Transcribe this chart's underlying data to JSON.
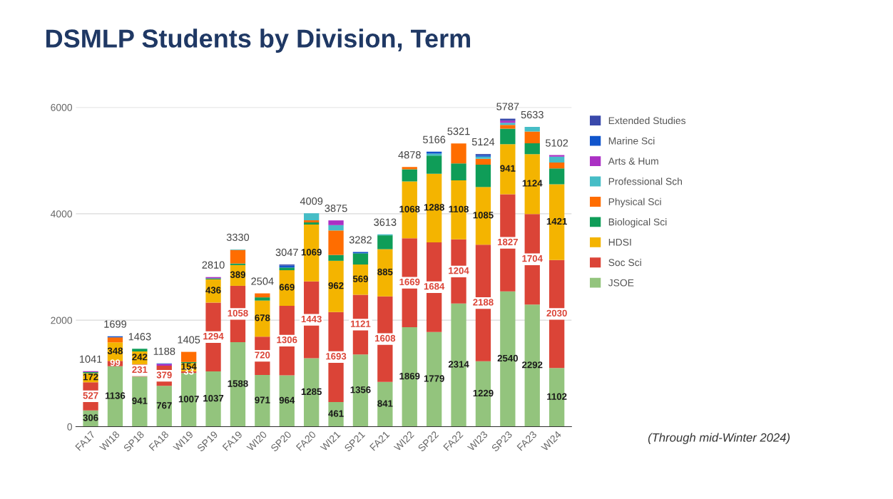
{
  "chart_data": {
    "type": "bar",
    "stacked": true,
    "title": "DSMLP Students by Division, Term",
    "categories": [
      "FA17",
      "WI18",
      "SP18",
      "FA18",
      "WI19",
      "SP19",
      "FA19",
      "WI20",
      "SP20",
      "FA20",
      "WI21",
      "SP21",
      "FA21",
      "WI22",
      "SP22",
      "FA22",
      "WI23",
      "SP23",
      "FA23",
      "WI24"
    ],
    "series": [
      {
        "name": "JSOE",
        "color": "#93c47d",
        "values": [
          306,
          1136,
          941,
          767,
          1007,
          1037,
          1588,
          971,
          964,
          1285,
          461,
          1356,
          841,
          1869,
          1779,
          2314,
          1229,
          2540,
          2292,
          1102
        ],
        "value_labels": [
          "306",
          "1136",
          "941",
          "767",
          "1007",
          "1037",
          "1588",
          "971",
          "964",
          "1285",
          "461",
          "1356",
          "841",
          "1869",
          "1779",
          "2314",
          "1229",
          "2540",
          "2292",
          "1102"
        ]
      },
      {
        "name": "Soc Sci",
        "color": "#db4437",
        "values": [
          527,
          99,
          231,
          379,
          33,
          1294,
          1058,
          720,
          1306,
          1443,
          1693,
          1121,
          1608,
          1669,
          1684,
          1204,
          2188,
          1827,
          1704,
          2030
        ],
        "value_labels": [
          "527",
          "99",
          "231",
          "379",
          "33",
          "1294",
          "1058",
          "720",
          "1306",
          "1443",
          "1693",
          "1121",
          "1608",
          "1669",
          "1684",
          "1204",
          "2188",
          "1827",
          "1704",
          "2030"
        ]
      },
      {
        "name": "HDSI",
        "color": "#f4b400",
        "values": [
          172,
          348,
          242,
          0,
          154,
          436,
          389,
          678,
          669,
          1069,
          962,
          569,
          885,
          1068,
          1288,
          1108,
          1085,
          941,
          1124,
          1421
        ],
        "value_labels": [
          "172",
          "348",
          "242",
          null,
          "154",
          "436",
          "389",
          "678",
          "669",
          "1069",
          "962",
          "569",
          "885",
          "1068",
          "1288",
          "1108",
          "1085",
          "941",
          "1124",
          "1421"
        ]
      },
      {
        "name": "Biological Sci",
        "color": "#0f9d58",
        "values": [
          18,
          0,
          49,
          0,
          20,
          20,
          30,
          60,
          50,
          40,
          110,
          210,
          260,
          230,
          340,
          320,
          420,
          290,
          203,
          300
        ]
      },
      {
        "name": "Physical Sci",
        "color": "#ff6d00",
        "values": [
          0,
          96,
          0,
          0,
          191,
          0,
          255,
          75,
          0,
          40,
          460,
          0,
          0,
          42,
          0,
          375,
          110,
          70,
          220,
          110
        ]
      },
      {
        "name": "Professional Sch",
        "color": "#46bdc6",
        "values": [
          0,
          0,
          0,
          0,
          0,
          0,
          10,
          0,
          0,
          132,
          100,
          0,
          19,
          0,
          40,
          0,
          40,
          40,
          90,
          110
        ]
      },
      {
        "name": "Arts & Hum",
        "color": "#ab30c4",
        "values": [
          18,
          0,
          0,
          32,
          0,
          23,
          0,
          0,
          0,
          0,
          89,
          0,
          0,
          0,
          0,
          0,
          0,
          40,
          0,
          29
        ]
      },
      {
        "name": "Marine Sci",
        "color": "#1155cc",
        "values": [
          0,
          20,
          0,
          10,
          0,
          0,
          0,
          0,
          38,
          0,
          0,
          26,
          0,
          0,
          35,
          0,
          30,
          0,
          0,
          0
        ]
      },
      {
        "name": "Extended Studies",
        "color": "#3949ab",
        "values": [
          0,
          0,
          0,
          0,
          0,
          0,
          0,
          0,
          20,
          0,
          0,
          0,
          0,
          0,
          0,
          0,
          22,
          39,
          0,
          0
        ]
      }
    ],
    "totals": [
      "1041",
      "1699",
      "1463",
      "1188",
      "1405",
      "2810",
      "3330",
      "2504",
      "3047",
      "4009",
      "3875",
      "3282",
      "3613",
      "4878",
      "5166",
      "5321",
      "5124",
      "5787",
      "5633",
      "5102"
    ],
    "ylim": [
      0,
      6000
    ],
    "yticks": [
      0,
      2000,
      4000,
      6000
    ],
    "grid": "y",
    "legend": "right",
    "annotations": [
      "(Through mid-Winter 2024)"
    ]
  }
}
